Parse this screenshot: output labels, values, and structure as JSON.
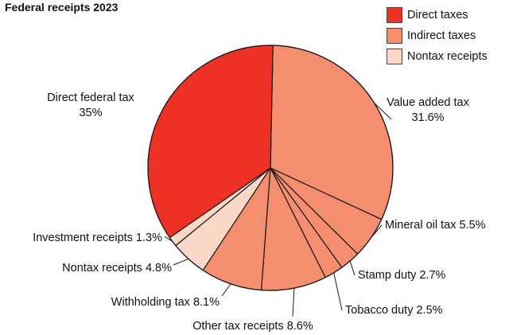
{
  "chart_data": {
    "type": "pie",
    "title": "Federal receipts 2023",
    "legend": {
      "placement": "top-right",
      "items": [
        {
          "label": "Direct taxes",
          "color": "#ee3124"
        },
        {
          "label": "Indirect taxes",
          "color": "#f58d6f"
        },
        {
          "label": "Nontax receipts",
          "color": "#fbd7c7"
        }
      ]
    },
    "slices": [
      {
        "name": "Value added tax",
        "value": 31.6,
        "value_label": "31.6%",
        "group": "Indirect taxes",
        "color": "#f58d6f"
      },
      {
        "name": "Mineral oil tax",
        "value": 5.5,
        "value_label": "5.5%",
        "group": "Indirect taxes",
        "color": "#f58d6f"
      },
      {
        "name": "Stamp duty",
        "value": 2.7,
        "value_label": "2.7%",
        "group": "Indirect taxes",
        "color": "#f58d6f"
      },
      {
        "name": "Tobacco duty",
        "value": 2.5,
        "value_label": "2.5%",
        "group": "Indirect taxes",
        "color": "#f58d6f"
      },
      {
        "name": "Other tax receipts",
        "value": 8.6,
        "value_label": "8.6%",
        "group": "Indirect taxes",
        "color": "#f58d6f"
      },
      {
        "name": "Withholding tax",
        "value": 8.1,
        "value_label": "8.1%",
        "group": "Indirect taxes",
        "color": "#f58d6f"
      },
      {
        "name": "Nontax receipts",
        "value": 4.8,
        "value_label": "4.8%",
        "group": "Nontax receipts",
        "color": "#fbd7c7"
      },
      {
        "name": "Investment receipts",
        "value": 1.3,
        "value_label": "1.3%",
        "group": "Nontax receipts",
        "color": "#fbd7c7"
      },
      {
        "name": "Direct federal tax",
        "value": 35,
        "value_label": "35%",
        "group": "Direct taxes",
        "color": "#ee3124"
      }
    ]
  }
}
